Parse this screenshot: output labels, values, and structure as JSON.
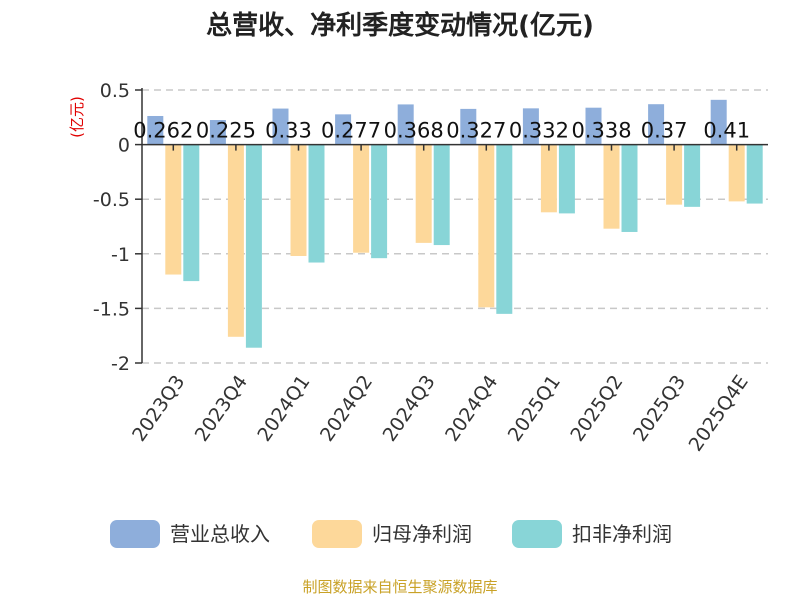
{
  "chart_data": {
    "type": "bar",
    "title": "总营收、净利季度变动情况(亿元)",
    "ylabel": "(亿元)",
    "xlabel": "",
    "ylim": [
      -2,
      0.5
    ],
    "yticks": [
      0.5,
      0,
      -0.5,
      -1,
      -1.5,
      -2
    ],
    "grid": true,
    "legend_position": "bottom",
    "categories": [
      "2023Q3",
      "2023Q4",
      "2024Q1",
      "2024Q2",
      "2024Q3",
      "2024Q4",
      "2025Q1",
      "2025Q2",
      "2025Q3",
      "2025Q4E"
    ],
    "series": [
      {
        "name": "营业总收入",
        "color": "#8eaedb",
        "values": [
          0.262,
          0.225,
          0.33,
          0.277,
          0.368,
          0.327,
          0.332,
          0.338,
          0.37,
          0.41
        ],
        "labels": [
          "0.262",
          "0.225",
          "0.33",
          "0.277",
          "0.368",
          "0.327",
          "0.332",
          "0.338",
          "0.37",
          "0.41"
        ]
      },
      {
        "name": "归母净利润",
        "color": "#fdd89a",
        "values": [
          -1.19,
          -1.76,
          -1.02,
          -0.99,
          -0.9,
          -1.49,
          -0.62,
          -0.77,
          -0.55,
          -0.52
        ]
      },
      {
        "name": "扣非净利润",
        "color": "#88d5d7",
        "values": [
          -1.25,
          -1.86,
          -1.08,
          -1.04,
          -0.92,
          -1.55,
          -0.63,
          -0.8,
          -0.57,
          -0.54
        ]
      }
    ],
    "source": "制图数据来自恒生聚源数据库"
  }
}
